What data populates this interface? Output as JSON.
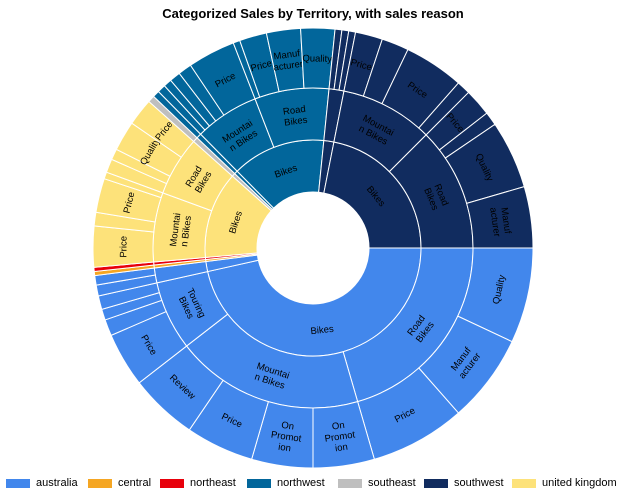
{
  "chart_data": {
    "type": "sunburst",
    "title": "Categorized Sales by Territory, with sales reason",
    "legend_position": "bottom",
    "territories": [
      {
        "name": "australia",
        "color": "#4287EC",
        "value": 48.0,
        "categories": [
          {
            "name": "Bikes",
            "value": 46.5,
            "subcategories": [
              {
                "name": "Road Bikes",
                "value": 20.5,
                "reasons": [
                  {
                    "name": "Quality",
                    "value": 7.0
                  },
                  {
                    "name": "Manufacturer",
                    "value": 6.5
                  },
                  {
                    "name": "Price",
                    "value": 7.0
                  }
                ]
              },
              {
                "name": "Mountain Bikes",
                "value": 19.0,
                "reasons": [
                  {
                    "name": "On Promotion",
                    "value": 4.5
                  },
                  {
                    "name": "On Promotion",
                    "value": 4.5
                  },
                  {
                    "name": "Price",
                    "value": 5.0
                  },
                  {
                    "name": "Review",
                    "value": 5.0
                  }
                ]
              },
              {
                "name": "Touring Bikes",
                "value": 7.0,
                "reasons": [
                  {
                    "name": "Price",
                    "value": 4.0
                  },
                  {
                    "name": "",
                    "value": 1.2
                  },
                  {
                    "name": "",
                    "value": 0.8
                  },
                  {
                    "name": "",
                    "value": 1.0
                  }
                ]
              }
            ]
          },
          {
            "name": "",
            "value": 1.5,
            "subcategories": [
              {
                "name": "",
                "value": 1.5,
                "reasons": [
                  {
                    "name": "",
                    "value": 0.8
                  },
                  {
                    "name": "",
                    "value": 0.7
                  }
                ]
              }
            ]
          }
        ]
      },
      {
        "name": "central",
        "color": "#F5A623",
        "value": 0.3,
        "categories": [
          {
            "name": "",
            "value": 0.3,
            "subcategories": [
              {
                "name": "",
                "value": 0.3,
                "reasons": [
                  {
                    "name": "",
                    "value": 0.3
                  }
                ]
              }
            ]
          }
        ]
      },
      {
        "name": "northeast",
        "color": "#E8000B",
        "value": 0.3,
        "categories": [
          {
            "name": "",
            "value": 0.3,
            "subcategories": [
              {
                "name": "",
                "value": 0.3,
                "reasons": [
                  {
                    "name": "",
                    "value": 0.3
                  }
                ]
              }
            ]
          }
        ]
      },
      {
        "name": "united kingdom",
        "color": "#FDE27A",
        "value": 13.0,
        "categories": [
          {
            "name": "Bikes",
            "value": 13.0,
            "subcategories": [
              {
                "name": "Mountain Bikes",
                "value": 7.0,
                "reasons": [
                  {
                    "name": "Price",
                    "value": 3.0
                  },
                  {
                    "name": "",
                    "value": 1.0
                  },
                  {
                    "name": "Price",
                    "value": 2.5
                  },
                  {
                    "name": "",
                    "value": 0.5
                  }
                ]
              },
              {
                "name": "Road Bikes",
                "value": 6.0,
                "reasons": [
                  {
                    "name": "",
                    "value": 1.0
                  },
                  {
                    "name": "",
                    "value": 0.8
                  },
                  {
                    "name": "Quality",
                    "value": 2.2
                  },
                  {
                    "name": "Price",
                    "value": 2.0
                  }
                ]
              }
            ]
          }
        ]
      },
      {
        "name": "southeast",
        "color": "#BFBFBF",
        "value": 0.5,
        "categories": [
          {
            "name": "",
            "value": 0.5,
            "subcategories": [
              {
                "name": "",
                "value": 0.5,
                "reasons": [
                  {
                    "name": "",
                    "value": 0.5
                  }
                ]
              }
            ]
          }
        ]
      },
      {
        "name": "northwest",
        "color": "#02669B",
        "value": 14.5,
        "categories": [
          {
            "name": "",
            "value": 0.5,
            "subcategories": [
              {
                "name": "",
                "value": 0.5,
                "reasons": [
                  {
                    "name": "",
                    "value": 0.5
                  }
                ]
              }
            ]
          },
          {
            "name": "Bikes",
            "value": 14.0,
            "subcategories": [
              {
                "name": "Mountain Bikes",
                "value": 6.5,
                "reasons": [
                  {
                    "name": "",
                    "value": 0.6
                  },
                  {
                    "name": "",
                    "value": 0.6
                  },
                  {
                    "name": "",
                    "value": 0.8
                  },
                  {
                    "name": "",
                    "value": 1.0
                  },
                  {
                    "name": "Price",
                    "value": 3.5
                  }
                ]
              },
              {
                "name": "Road Bikes",
                "value": 7.5,
                "reasons": [
                  {
                    "name": "",
                    "value": 0.5
                  },
                  {
                    "name": "Price",
                    "value": 2.0
                  },
                  {
                    "name": "Manufacturer",
                    "value": 2.5
                  },
                  {
                    "name": "Quality",
                    "value": 2.5
                  }
                ]
              }
            ]
          }
        ]
      },
      {
        "name": "southwest",
        "color": "#112C5F",
        "value": 23.4,
        "categories": [
          {
            "name": "",
            "value": 1.5,
            "subcategories": [
              {
                "name": "",
                "value": 1.5,
                "reasons": [
                  {
                    "name": "",
                    "value": 0.5
                  },
                  {
                    "name": "",
                    "value": 0.5
                  },
                  {
                    "name": "",
                    "value": 0.5
                  }
                ]
              }
            ]
          },
          {
            "name": "Bikes",
            "value": 21.9,
            "subcategories": [
              {
                "name": "Mountain Bikes",
                "value": 9.4,
                "reasons": [
                  {
                    "name": "Price",
                    "value": 2.0
                  },
                  {
                    "name": "",
                    "value": 2.0
                  },
                  {
                    "name": "Price",
                    "value": 4.4
                  },
                  {
                    "name": "",
                    "value": 1.0
                  }
                ]
              },
              {
                "name": "Road Bikes",
                "value": 12.5,
                "reasons": [
                  {
                    "name": "Price",
                    "value": 2.0
                  },
                  {
                    "name": "",
                    "value": 1.0
                  },
                  {
                    "name": "Quality",
                    "value": 5.0
                  },
                  {
                    "name": "Manufacturer",
                    "value": 4.5
                  }
                ]
              }
            ]
          }
        ]
      }
    ]
  }
}
